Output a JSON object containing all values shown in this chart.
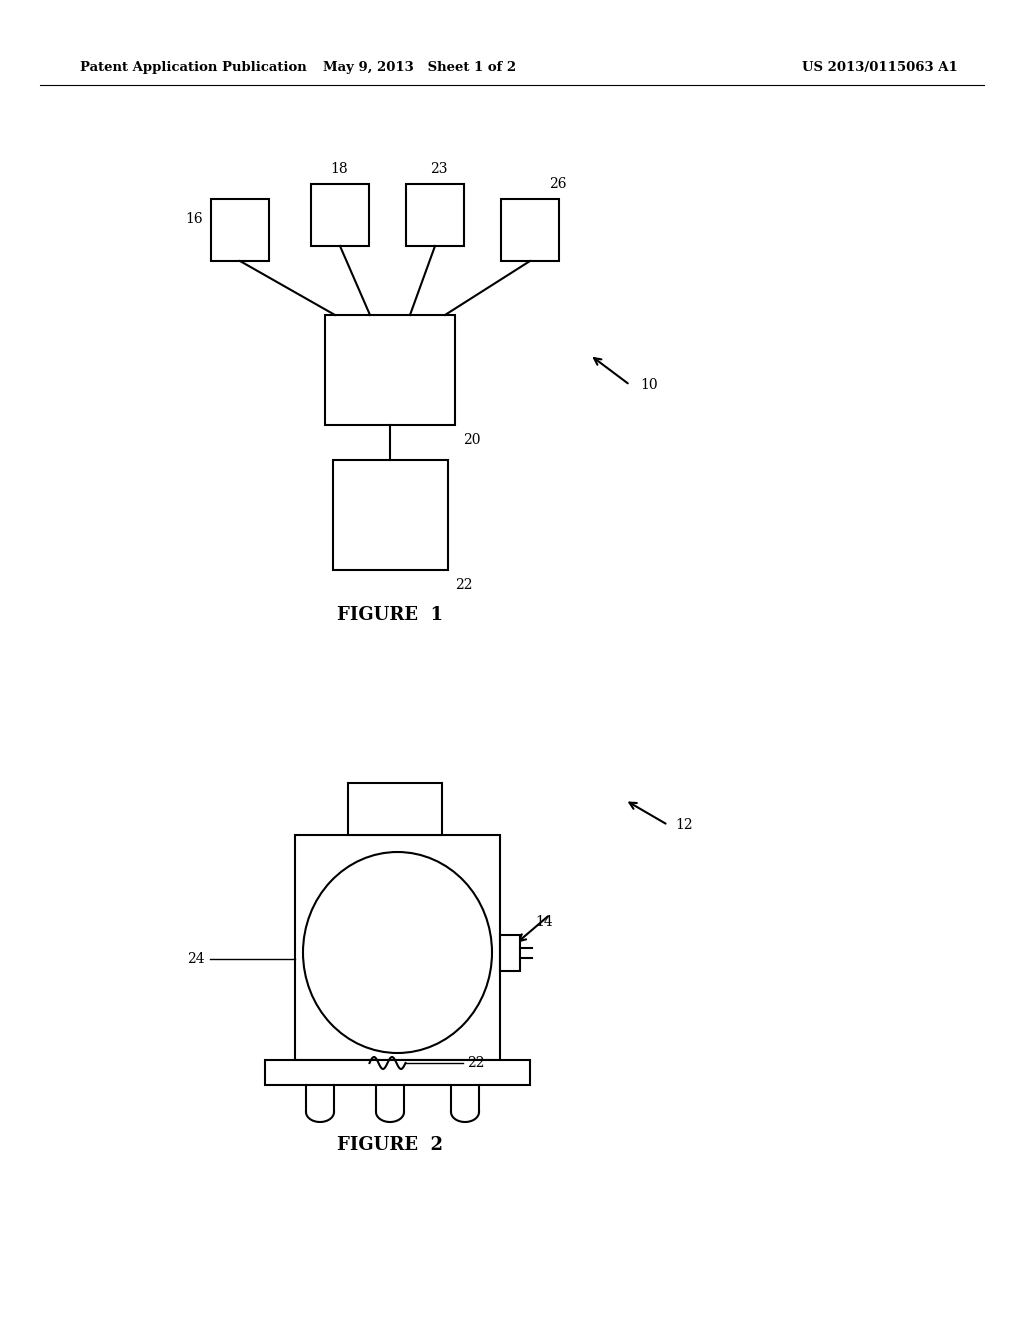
{
  "bg_color": "#ffffff",
  "line_color": "#000000",
  "header_left": "Patent Application Publication",
  "header_mid": "May 9, 2013   Sheet 1 of 2",
  "header_right": "US 2013/0115063 A1",
  "fig1_label": "FIGURE  1",
  "fig2_label": "FIGURE  2"
}
